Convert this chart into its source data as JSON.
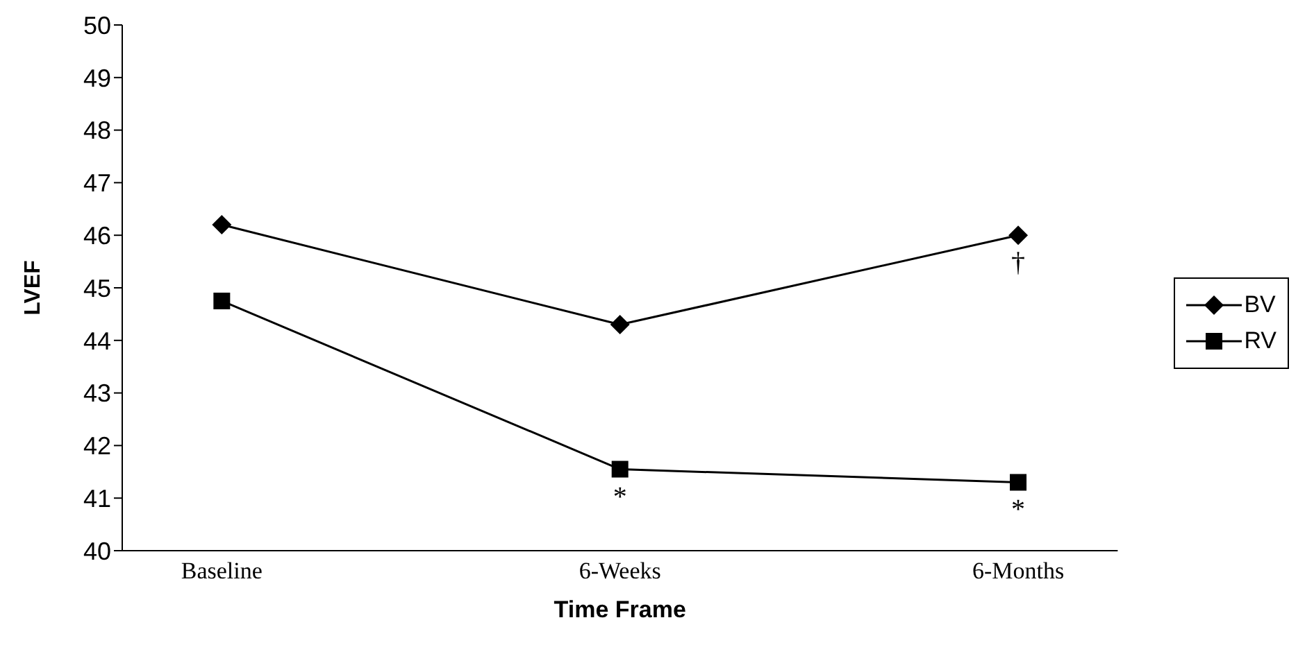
{
  "chart_data": {
    "type": "line",
    "xlabel": "Time Frame",
    "ylabel": "LVEF",
    "categories": [
      "Baseline",
      "6-Weeks",
      "6-Months"
    ],
    "series": [
      {
        "name": "BV",
        "color": "#000000",
        "marker": "diamond",
        "values": [
          46.2,
          44.3,
          46.0
        ]
      },
      {
        "name": "RV",
        "color": "#000000",
        "marker": "square",
        "values": [
          44.75,
          41.55,
          41.3
        ]
      }
    ],
    "ylim": [
      40,
      50
    ],
    "yticks": [
      40,
      41,
      42,
      43,
      44,
      45,
      46,
      47,
      48,
      49,
      50
    ],
    "grid": false,
    "legend": "right",
    "line_style": "solid",
    "annotations": [
      {
        "text": "*",
        "x": "6-Weeks",
        "y": 41.55
      },
      {
        "text": "†",
        "x": "6-Months",
        "y": 46.0
      },
      {
        "text": "*",
        "x": "6-Months",
        "y": 41.3
      }
    ]
  }
}
